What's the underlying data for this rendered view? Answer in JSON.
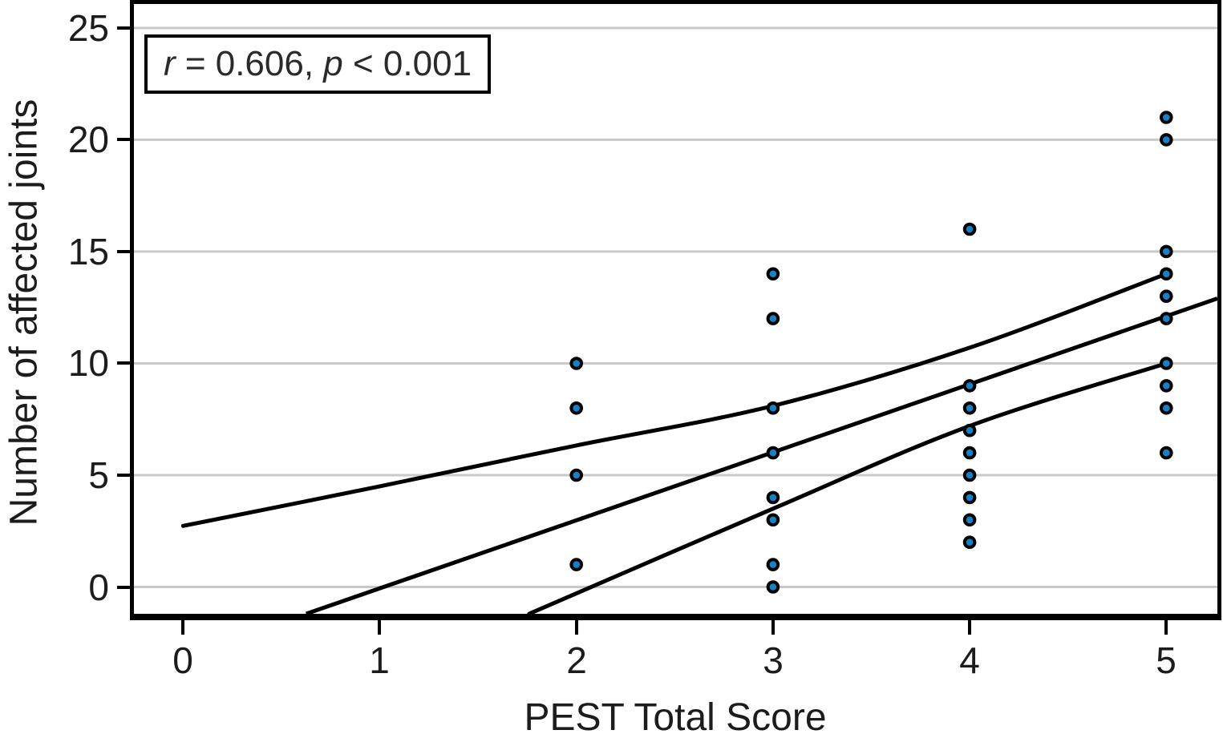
{
  "figure": {
    "xlabel": "PEST Total Score",
    "ylabel": "Number of affected joints",
    "annotation": {
      "full_text": "r = 0.606, p < 0.001",
      "r_var": "r",
      "r_rest": " = 0.606, ",
      "p_var": "p",
      "p_rest": " < 0.001"
    }
  },
  "chart_data": {
    "type": "scatter",
    "title": "",
    "xlabel": "PEST Total Score",
    "ylabel": "Number of affected joints",
    "annotation": "r = 0.606, p < 0.001",
    "legend": "none",
    "grid": "horizontal gridlines only",
    "x_ticks": [
      0,
      1,
      2,
      3,
      4,
      5
    ],
    "y_ticks": [
      0,
      5,
      10,
      15,
      20,
      25
    ],
    "xlim": [
      -0.25,
      5.26
    ],
    "ylim": [
      -1.2,
      26.07
    ],
    "series": [
      {
        "x": 2,
        "joint_counts": [
          10,
          8,
          5,
          1
        ]
      },
      {
        "x": 3,
        "joint_counts": [
          14,
          12,
          8,
          6,
          4,
          3,
          1,
          0
        ]
      },
      {
        "x": 4,
        "joint_counts": [
          16,
          9,
          8,
          7,
          6,
          5,
          4,
          3,
          2
        ]
      },
      {
        "x": 5,
        "joint_counts": [
          21,
          20,
          15,
          14,
          13,
          12,
          10,
          9,
          8,
          6
        ]
      }
    ],
    "regression": {
      "fit_line": [
        [
          0.626,
          -1.2
        ],
        [
          5.26,
          12.9
        ]
      ],
      "ci_upper": [
        [
          0,
          2.73
        ],
        [
          1,
          4.5
        ],
        [
          2,
          6.33
        ],
        [
          3,
          8.1
        ],
        [
          4,
          10.7
        ],
        [
          5,
          14.0
        ]
      ],
      "ci_lower": [
        [
          1.76,
          -1.2
        ],
        [
          3,
          3.5
        ],
        [
          4,
          7.2
        ],
        [
          5,
          10.0
        ]
      ]
    },
    "colors": {
      "point_fill": "#1681c4",
      "point_edge": "#000000",
      "line": "#000000",
      "grid": "#c9c9c9",
      "spine": "#000000",
      "text": "#1c1c1c"
    }
  }
}
